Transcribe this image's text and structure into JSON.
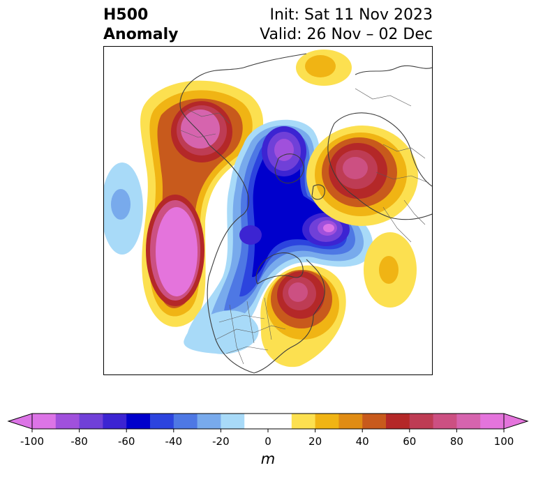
{
  "title": {
    "left_line1": "H500",
    "left_line2": "Anomaly",
    "right_line1": "Init: Sat 11 Nov 2023",
    "right_line2": "Valid: 26 Nov – 02 Dec"
  },
  "colorbar": {
    "units": "m",
    "ticks": [
      "-100",
      "-80",
      "-60",
      "-40",
      "-20",
      "0",
      "20",
      "40",
      "60",
      "80",
      "100"
    ],
    "colors": [
      "#dc74e6",
      "#a050dc",
      "#7040d8",
      "#3c24d2",
      "#0000cc",
      "#2c44de",
      "#4e78e4",
      "#78aaec",
      "#a8daf8",
      "#ffffff",
      "#ffffff",
      "#fce050",
      "#f0b414",
      "#e08c14",
      "#c85a1c",
      "#b42828",
      "#be3c54",
      "#cc5082",
      "#d664ae",
      "#e474dc"
    ],
    "extend": "both"
  },
  "map": {
    "projection": "north-polar-stereographic",
    "field": "500 hPa geopotential height anomaly"
  }
}
